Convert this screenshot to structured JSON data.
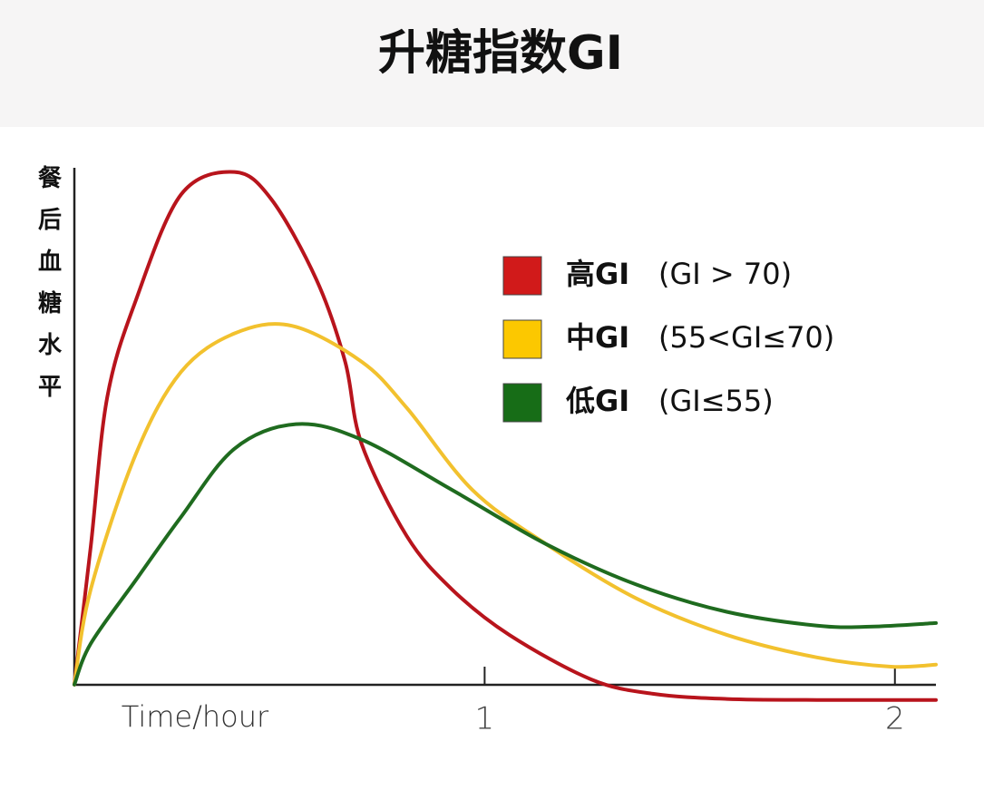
{
  "chart_data": {
    "type": "line",
    "title": "升糖指数GI",
    "y_label": "餐后血糖水平",
    "x_label": "Time/hour",
    "xlim": [
      0,
      2.1
    ],
    "ylim": [
      -5,
      101
    ],
    "xticks": [
      1,
      2
    ],
    "grid": false,
    "legend": "upper right",
    "series": [
      {
        "name": "高GI",
        "description": "(GI > 70)",
        "color": "#b8141c",
        "legend_color": "#d11a1a",
        "x": [
          0,
          0.04,
          0.08,
          0.15,
          0.26,
          0.39,
          0.48,
          0.59,
          0.66,
          0.7,
          0.81,
          0.92,
          1.06,
          1.26,
          1.41,
          1.59,
          1.81,
          2.1
        ],
        "values": [
          0,
          27,
          56,
          75,
          95.6,
          100,
          94.7,
          79,
          63,
          47,
          29,
          18.6,
          9.7,
          1,
          -1.8,
          -2.8,
          -3,
          -3
        ]
      },
      {
        "name": "中GI",
        "description": "(55<GI≤70)",
        "color": "#f2c12e",
        "legend_color": "#fcc800",
        "x": [
          0,
          0.04,
          0.15,
          0.26,
          0.39,
          0.53,
          0.7,
          0.81,
          0.97,
          1.15,
          1.37,
          1.59,
          1.81,
          1.99,
          2.1
        ],
        "values": [
          0,
          18.6,
          45,
          61,
          68.5,
          70,
          63,
          54,
          38,
          27.4,
          16.8,
          9.7,
          5.3,
          3.5,
          3.9
        ]
      },
      {
        "name": "低GI",
        "description": "(GI≤55)",
        "color": "#1f6b1f",
        "legend_color": "#176d17",
        "x": [
          0,
          0.04,
          0.15,
          0.26,
          0.39,
          0.54,
          0.7,
          0.92,
          1.15,
          1.37,
          1.59,
          1.81,
          1.94,
          2.1
        ],
        "values": [
          0,
          8,
          20.4,
          32.7,
          46,
          50.8,
          47.8,
          38,
          27.4,
          19.5,
          14.2,
          11.5,
          11.3,
          12
        ]
      }
    ]
  }
}
